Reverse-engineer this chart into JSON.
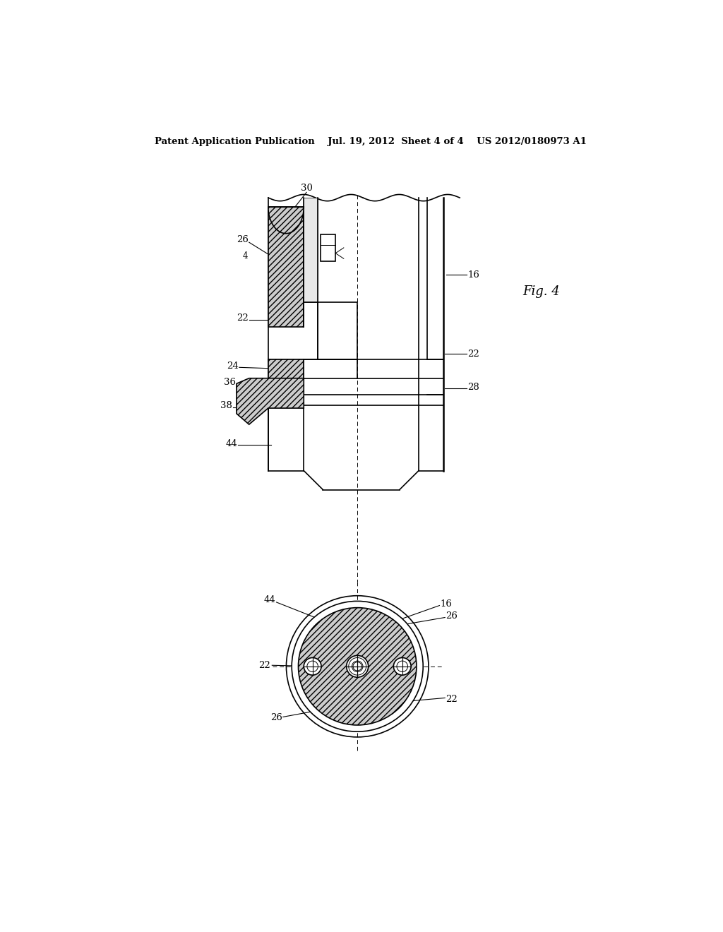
{
  "bg_color": "#ffffff",
  "line_color": "#000000",
  "header_text": "Patent Application Publication    Jul. 19, 2012  Sheet 4 of 4    US 2012/0180973 A1",
  "fig_label": "Fig. 4",
  "lw_main": 1.2,
  "lw_thin": 0.7,
  "lw_thick": 1.8
}
